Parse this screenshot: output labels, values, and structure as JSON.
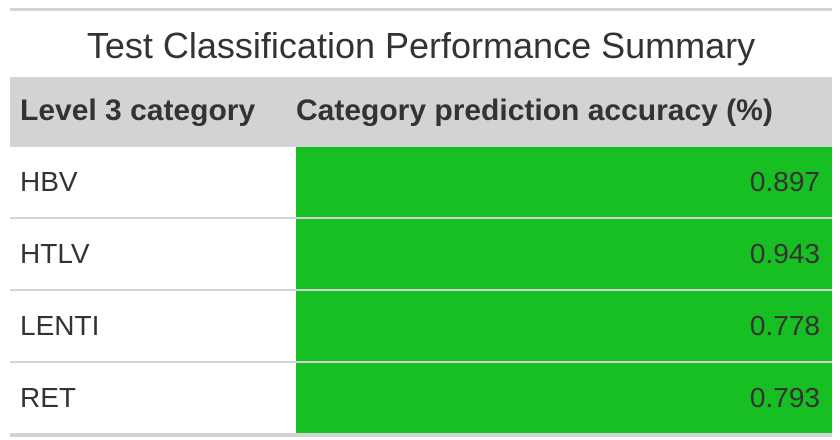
{
  "chart_data": {
    "type": "table",
    "title": "Test Classification Performance Summary",
    "columns": [
      "Level 3 category",
      "Category prediction accuracy (%)"
    ],
    "rows": [
      {
        "category": "HBV",
        "accuracy": "0.897"
      },
      {
        "category": "HTLV",
        "accuracy": "0.943"
      },
      {
        "category": "LENTI",
        "accuracy": "0.778"
      },
      {
        "category": "RET",
        "accuracy": "0.793"
      }
    ],
    "highlight_color": "#17bf22",
    "header_background": "#d3d3d3"
  }
}
